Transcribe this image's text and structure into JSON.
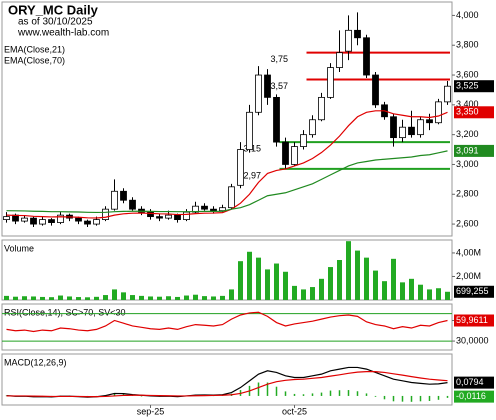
{
  "chart_data": [
    {
      "type": "candlestick",
      "title": "ORY_MC Daily",
      "subtitle": "as of 30/10/2025",
      "source": "www.wealth-lab.com",
      "ylim": [
        2520,
        4090
      ],
      "yticks": [
        {
          "value": 2600,
          "label": "2,600"
        },
        {
          "value": 2800,
          "label": "2,800"
        },
        {
          "value": 3000,
          "label": "3,000"
        },
        {
          "value": 3200,
          "label": "3,200"
        },
        {
          "value": 3400,
          "label": "3,400"
        },
        {
          "value": 3600,
          "label": "3,600"
        },
        {
          "value": 3800,
          "label": "3,800"
        },
        {
          "value": 4000,
          "label": "4,000"
        }
      ],
      "open": [
        2630,
        2660,
        2620,
        2640,
        2600,
        2630,
        2610,
        2660,
        2640,
        2620,
        2600,
        2630,
        2700,
        2820,
        2760,
        2700,
        2680,
        2650,
        2640,
        2660,
        2630,
        2680,
        2720,
        2700,
        2690,
        2710,
        2860,
        3100,
        3350,
        3600,
        3450,
        3150,
        3000,
        3120,
        3200,
        3300,
        3450,
        3650,
        3760,
        3900,
        3850,
        3600,
        3400,
        3320,
        3180,
        3250,
        3200,
        3300,
        3280,
        3420
      ],
      "high": [
        2680,
        2670,
        2660,
        2650,
        2650,
        2640,
        2680,
        2670,
        2650,
        2630,
        2650,
        2720,
        2900,
        2840,
        2780,
        2720,
        2700,
        2670,
        2690,
        2670,
        2700,
        2750,
        2740,
        2720,
        2730,
        2870,
        3150,
        3400,
        3660,
        3640,
        3470,
        3180,
        3150,
        3230,
        3330,
        3480,
        3680,
        3900,
        4000,
        4020,
        3870,
        3620,
        3420,
        3340,
        3300,
        3360,
        3320,
        3340,
        3440,
        3560
      ],
      "low": [
        2610,
        2600,
        2610,
        2580,
        2590,
        2590,
        2600,
        2620,
        2600,
        2580,
        2590,
        2620,
        2690,
        2740,
        2690,
        2660,
        2630,
        2620,
        2630,
        2610,
        2620,
        2670,
        2690,
        2670,
        2680,
        2700,
        2840,
        3080,
        3330,
        3400,
        3120,
        2970,
        2990,
        3100,
        3180,
        3290,
        3440,
        3620,
        3700,
        3800,
        3580,
        3380,
        3300,
        3120,
        3150,
        3180,
        3180,
        3230,
        3270,
        3400
      ],
      "close": [
        2650,
        2620,
        2640,
        2600,
        2630,
        2610,
        2660,
        2640,
        2620,
        2600,
        2630,
        2700,
        2820,
        2760,
        2700,
        2680,
        2650,
        2640,
        2660,
        2630,
        2680,
        2720,
        2700,
        2690,
        2710,
        2850,
        3100,
        3350,
        3600,
        3450,
        3150,
        3000,
        3120,
        3200,
        3300,
        3450,
        3650,
        3750,
        3900,
        3850,
        3600,
        3400,
        3320,
        3180,
        3250,
        3200,
        3300,
        3280,
        3420,
        3525
      ],
      "last_label": "3,525",
      "series": [
        {
          "name": "EMA(Close,21)",
          "color": "#e00000",
          "last_label": "3,350",
          "values": [
            2660,
            2658,
            2657,
            2652,
            2650,
            2648,
            2649,
            2648,
            2646,
            2642,
            2641,
            2646,
            2660,
            2669,
            2673,
            2674,
            2672,
            2669,
            2668,
            2664,
            2665,
            2670,
            2673,
            2674,
            2677,
            2700,
            2740,
            2800,
            2880,
            2940,
            2960,
            2970,
            2990,
            3010,
            3040,
            3080,
            3130,
            3190,
            3260,
            3320,
            3350,
            3360,
            3360,
            3340,
            3330,
            3320,
            3320,
            3315,
            3325,
            3350
          ]
        },
        {
          "name": "EMA(Close,70)",
          "color": "#208a20",
          "last_label": "3,091",
          "values": [
            2690,
            2689,
            2688,
            2686,
            2685,
            2683,
            2683,
            2682,
            2681,
            2679,
            2678,
            2679,
            2683,
            2685,
            2686,
            2686,
            2685,
            2684,
            2684,
            2683,
            2683,
            2684,
            2685,
            2685,
            2686,
            2700,
            2710,
            2730,
            2760,
            2790,
            2800,
            2810,
            2830,
            2850,
            2870,
            2900,
            2930,
            2960,
            2990,
            3010,
            3020,
            3030,
            3035,
            3040,
            3045,
            3050,
            3060,
            3065,
            3078,
            3091
          ]
        }
      ],
      "levels": [
        {
          "value": 3750,
          "label": "3,75",
          "color": "#e00000"
        },
        {
          "value": 3570,
          "label": "3,57",
          "color": "#e00000"
        },
        {
          "value": 3150,
          "label": "3,15",
          "color": "#20a020"
        },
        {
          "value": 2970,
          "label": "2,97",
          "color": "#20a020"
        }
      ]
    },
    {
      "type": "bar",
      "title": "Volume",
      "color": "#22aa22",
      "ylim": [
        0,
        5100000
      ],
      "yticks": [
        {
          "value": 2000000,
          "label": "2,00M"
        },
        {
          "value": 4000000,
          "label": "4,00M"
        }
      ],
      "values": [
        350000,
        280000,
        320000,
        300000,
        260000,
        240000,
        380000,
        300000,
        250000,
        230000,
        270000,
        420000,
        900000,
        650000,
        420000,
        350000,
        300000,
        280000,
        320000,
        260000,
        380000,
        450000,
        330000,
        300000,
        350000,
        900000,
        3300000,
        4100000,
        3600000,
        2600000,
        3100000,
        2400000,
        1200000,
        900000,
        1100000,
        1800000,
        2800000,
        3400000,
        5000000,
        4200000,
        3600000,
        2500000,
        1600000,
        3500000,
        1500000,
        1800000,
        1300000,
        900000,
        1000000,
        699255
      ],
      "last_label": "699,255"
    },
    {
      "type": "line",
      "title": "RSI(Close,14), SC>70, SV<30",
      "ylim": [
        17,
        84
      ],
      "yticks": [
        {
          "value": 30,
          "label": "30,0000"
        },
        {
          "value": 60,
          "label": "60,0000"
        }
      ],
      "thresholds": [
        70,
        30
      ],
      "threshold_color": "#20a020",
      "series": [
        {
          "color": "#e00000",
          "last_label": "59,9611",
          "values": [
            47,
            45,
            46,
            44,
            46,
            45,
            49,
            48,
            46,
            45,
            47,
            52,
            60,
            56,
            52,
            50,
            48,
            47,
            49,
            47,
            51,
            54,
            53,
            52,
            54,
            62,
            68,
            71,
            72,
            66,
            57,
            52,
            55,
            57,
            59,
            62,
            65,
            67,
            68,
            66,
            58,
            54,
            52,
            48,
            51,
            49,
            53,
            52,
            57,
            59.9611
          ]
        }
      ]
    },
    {
      "type": "line",
      "title": "MACD(12,26,9)",
      "ylim": [
        -0.054,
        0.25
      ],
      "categories": [
        null,
        null,
        null,
        null,
        null,
        null,
        null,
        null,
        null,
        null,
        null,
        null,
        null,
        null,
        null,
        null,
        "sep-25",
        null,
        null,
        null,
        null,
        null,
        null,
        null,
        null,
        null,
        null,
        null,
        null,
        null,
        null,
        null,
        "oct-25",
        null,
        null,
        null,
        null,
        null,
        null,
        null,
        null,
        null,
        null,
        null,
        null,
        null,
        null,
        null,
        null,
        null
      ],
      "series": [
        {
          "color": "#000000",
          "last_label": "0,0794",
          "values": [
            0.002,
            -0.002,
            -0.001,
            -0.005,
            -0.004,
            -0.006,
            -0.002,
            -0.002,
            -0.004,
            -0.007,
            -0.005,
            0.002,
            0.015,
            0.014,
            0.008,
            0.004,
            0,
            -0.002,
            -0.001,
            -0.004,
            0,
            0.005,
            0.006,
            0.005,
            0.007,
            0.02,
            0.05,
            0.09,
            0.13,
            0.15,
            0.14,
            0.12,
            0.11,
            0.11,
            0.12,
            0.13,
            0.15,
            0.16,
            0.17,
            0.17,
            0.16,
            0.14,
            0.12,
            0.1,
            0.09,
            0.08,
            0.075,
            0.07,
            0.072,
            0.0794
          ]
        },
        {
          "color": "#e00000",
          "values": [
            0,
            0,
            0,
            -0.001,
            -0.002,
            -0.003,
            -0.003,
            -0.003,
            -0.003,
            -0.004,
            -0.004,
            -0.003,
            0,
            0.003,
            0.004,
            0.004,
            0.003,
            0.002,
            0.001,
            0,
            0,
            0.001,
            0.002,
            0.003,
            0.004,
            0.007,
            0.015,
            0.03,
            0.05,
            0.07,
            0.085,
            0.093,
            0.098,
            0.1,
            0.105,
            0.11,
            0.118,
            0.126,
            0.135,
            0.142,
            0.145,
            0.145,
            0.14,
            0.132,
            0.124,
            0.115,
            0.107,
            0.1,
            0.095,
            0.091
          ]
        }
      ],
      "histogram": {
        "color": "#22aa22",
        "last_label": "-0,0116",
        "values": [
          0.002,
          -0.002,
          -0.001,
          -0.004,
          -0.002,
          -0.003,
          0.001,
          0.001,
          -0.001,
          -0.003,
          -0.001,
          0.005,
          0.015,
          0.011,
          0.004,
          0,
          -0.003,
          -0.004,
          -0.002,
          -0.004,
          0,
          0.004,
          0.004,
          0.002,
          0.003,
          0.013,
          0.035,
          0.06,
          0.08,
          0.08,
          0.055,
          0.027,
          0.012,
          0.01,
          0.015,
          0.02,
          0.032,
          0.034,
          0.035,
          0.028,
          0.015,
          -0.005,
          -0.02,
          -0.032,
          -0.034,
          -0.035,
          -0.032,
          -0.03,
          -0.023,
          -0.0116
        ]
      }
    }
  ]
}
